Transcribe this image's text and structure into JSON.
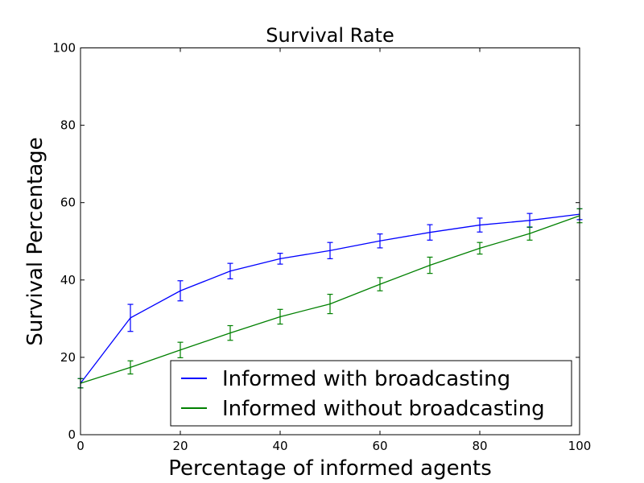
{
  "chart_data": {
    "type": "line",
    "title": "Survival Rate",
    "xlabel": "Percentage of informed agents",
    "ylabel": "Survival Percentage",
    "xlim": [
      0,
      100
    ],
    "ylim": [
      0,
      100
    ],
    "xticks": [
      0,
      20,
      40,
      60,
      80,
      100
    ],
    "yticks": [
      0,
      20,
      40,
      60,
      80,
      100
    ],
    "grid": false,
    "legend_position": "lower-right",
    "x": [
      0,
      10,
      20,
      30,
      40,
      50,
      60,
      70,
      80,
      90,
      100
    ],
    "series": [
      {
        "name": "Informed with broadcasting",
        "color": "#0000ff",
        "values": [
          13.3,
          30.2,
          37.2,
          42.3,
          45.5,
          47.6,
          50.1,
          52.3,
          54.2,
          55.4,
          57.0
        ],
        "errors": [
          1.2,
          3.5,
          2.6,
          2.0,
          1.4,
          2.1,
          1.8,
          2.0,
          1.8,
          1.8,
          1.4
        ]
      },
      {
        "name": "Informed without broadcasting",
        "color": "#008000",
        "values": [
          13.3,
          17.4,
          21.9,
          26.3,
          30.5,
          33.8,
          38.9,
          43.8,
          48.2,
          52.0,
          56.6
        ],
        "errors": [
          1.2,
          1.7,
          2.0,
          1.9,
          1.9,
          2.5,
          1.7,
          2.1,
          1.5,
          1.7,
          1.8
        ]
      }
    ]
  }
}
